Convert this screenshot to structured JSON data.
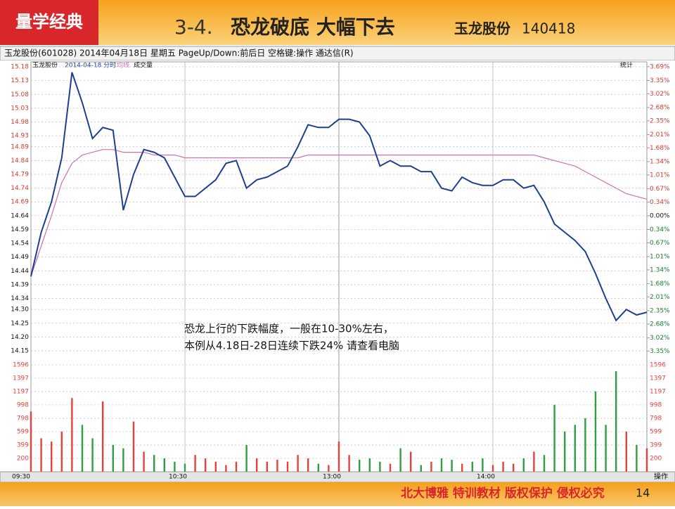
{
  "slide": {
    "logo": "量学经典",
    "title_number": "3-4.",
    "title_main": "恐龙破底 大幅下去",
    "title_stock": "玉龙股份",
    "title_code": "140418",
    "window_title": "玉龙股份(601028)  2014年04月18日  星期五  PageUp/Down:前后日  空格键:操作  通达信(R)",
    "legend_stock": "玉龙股份",
    "legend_date": "2014-04-18 分时",
    "legend_avg": "均线",
    "legend_volume": "成交量",
    "stats": "统计",
    "annotation_line1": "恐龙上行的下跌幅度，一般在10-30%左右，",
    "annotation_line2": "本例从4.18日-28日连续下跌24% 请查看电脑",
    "operate": "操作",
    "footer": "北大博雅 特训教材 版权保护 侵权必究",
    "page": "14"
  },
  "chart_data": [
    {
      "type": "line",
      "x": [
        0,
        4,
        8,
        12,
        16,
        20,
        24,
        28,
        32,
        36,
        40,
        44,
        48,
        52,
        56,
        60,
        64,
        68,
        72,
        76,
        80,
        84,
        88,
        92,
        96,
        100,
        104,
        108,
        112,
        116,
        120,
        124,
        128,
        132,
        136,
        140,
        144,
        148,
        152,
        156,
        160,
        164,
        168,
        172,
        176,
        180,
        184,
        188,
        192,
        196,
        200,
        204,
        208,
        212,
        216,
        220,
        224,
        228,
        232,
        236,
        240
      ],
      "series": [
        {
          "name": "玉龙股份",
          "color": "#1f3f8f",
          "values": [
            14.42,
            14.58,
            14.69,
            14.85,
            15.16,
            15.05,
            14.92,
            14.96,
            14.95,
            14.66,
            14.79,
            14.88,
            14.87,
            14.85,
            14.78,
            14.71,
            14.71,
            14.74,
            14.77,
            14.83,
            14.84,
            14.74,
            14.77,
            14.78,
            14.8,
            14.82,
            14.89,
            14.97,
            14.96,
            14.96,
            14.99,
            14.99,
            14.98,
            14.93,
            14.82,
            14.84,
            14.82,
            14.82,
            14.8,
            14.8,
            14.74,
            14.73,
            14.78,
            14.76,
            14.75,
            14.75,
            14.77,
            14.77,
            14.74,
            14.75,
            14.69,
            14.61,
            14.58,
            14.55,
            14.51,
            14.43,
            14.34,
            14.26,
            14.3,
            14.28,
            14.29
          ]
        },
        {
          "name": "均线",
          "color": "#d070b0",
          "values": [
            14.42,
            14.53,
            14.64,
            14.76,
            14.83,
            14.86,
            14.87,
            14.88,
            14.88,
            14.87,
            14.87,
            14.87,
            14.86,
            14.86,
            14.86,
            14.85,
            14.85,
            14.85,
            14.85,
            14.85,
            14.85,
            14.85,
            14.85,
            14.85,
            14.85,
            14.85,
            14.85,
            14.86,
            14.86,
            14.86,
            14.86,
            14.86,
            14.86,
            14.86,
            14.86,
            14.86,
            14.86,
            14.86,
            14.86,
            14.86,
            14.86,
            14.86,
            14.86,
            14.86,
            14.86,
            14.86,
            14.86,
            14.86,
            14.86,
            14.86,
            14.85,
            14.84,
            14.83,
            14.82,
            14.8,
            14.78,
            14.76,
            14.74,
            14.72,
            14.71,
            14.7
          ]
        }
      ],
      "xlim": [
        0,
        240
      ],
      "xticks": [
        {
          "value": 0,
          "label": "09:30"
        },
        {
          "value": 60,
          "label": "10:30"
        },
        {
          "value": 120,
          "label": "13:00"
        },
        {
          "value": 180,
          "label": "14:00"
        }
      ],
      "ylim": [
        14.127,
        15.198
      ],
      "yticks": [
        15.18,
        15.13,
        15.08,
        15.03,
        14.98,
        14.93,
        14.89,
        14.84,
        14.79,
        14.74,
        14.69,
        14.64,
        14.59,
        14.54,
        14.49,
        14.44,
        14.39,
        14.34,
        {
          "value": 14.3,
          "label": "14.30"
        },
        14.25,
        {
          "value": 14.2,
          "label": "14.20"
        },
        14.15
      ],
      "y2lim": [
        -3.5,
        3.81
      ],
      "y2ticks": [
        {
          "value": 3.69,
          "label": "3.69%"
        },
        {
          "value": 3.35,
          "label": "3.35%"
        },
        {
          "value": 3.02,
          "label": "3.02%"
        },
        {
          "value": 2.68,
          "label": "2.68%"
        },
        {
          "value": 2.35,
          "label": "2.35%"
        },
        {
          "value": 2.01,
          "label": "2.01%"
        },
        {
          "value": 1.68,
          "label": "1.68%"
        },
        {
          "value": 1.34,
          "label": "1.34%"
        },
        {
          "value": 1.01,
          "label": "1.01%"
        },
        {
          "value": 0.67,
          "label": "0.67%"
        },
        {
          "value": 0.34,
          "label": "0.34%"
        },
        {
          "value": 0,
          "label": "0.00%"
        },
        {
          "value": -0.34,
          "label": "0.34%"
        },
        {
          "value": -0.67,
          "label": "0.67%"
        },
        {
          "value": -1.01,
          "label": "1.01%"
        },
        {
          "value": -1.34,
          "label": "1.34%"
        },
        {
          "value": -1.68,
          "label": "1.68%"
        },
        {
          "value": -2.01,
          "label": "2.01%"
        },
        {
          "value": -2.35,
          "label": "2.35%"
        },
        {
          "value": -2.68,
          "label": "2.68%"
        },
        {
          "value": -3.02,
          "label": "3.02%"
        },
        {
          "value": -3.35,
          "label": "3.35%"
        }
      ],
      "grid": true,
      "up_color": "#d23a2a",
      "down_color": "#1c7a2c"
    },
    {
      "type": "bar",
      "x": [
        0,
        4,
        8,
        12,
        16,
        20,
        24,
        28,
        32,
        36,
        40,
        44,
        48,
        52,
        56,
        60,
        64,
        68,
        72,
        76,
        80,
        84,
        88,
        92,
        96,
        100,
        104,
        108,
        112,
        116,
        120,
        124,
        128,
        132,
        136,
        140,
        144,
        148,
        152,
        156,
        160,
        164,
        168,
        172,
        176,
        180,
        184,
        188,
        192,
        196,
        200,
        204,
        208,
        212,
        216,
        220,
        224,
        228,
        232,
        236,
        240
      ],
      "values": [
        900,
        500,
        450,
        600,
        1100,
        700,
        500,
        1050,
        400,
        350,
        750,
        300,
        250,
        200,
        150,
        120,
        250,
        200,
        150,
        100,
        150,
        400,
        200,
        150,
        180,
        150,
        250,
        200,
        120,
        100,
        450,
        250,
        180,
        200,
        150,
        120,
        350,
        300,
        100,
        150,
        200,
        180,
        120,
        150,
        200,
        100,
        150,
        120,
        200,
        300,
        250,
        1000,
        600,
        700,
        800,
        1200,
        700,
        1500,
        600,
        400,
        350
      ],
      "xlim": [
        0,
        240
      ],
      "ylim": [
        0,
        1690
      ],
      "yticks": [
        1596,
        1397,
        1197,
        998,
        798,
        599,
        399,
        200
      ],
      "grid": true,
      "up_color": "#e8413b",
      "down_color": "#2ea043"
    }
  ]
}
